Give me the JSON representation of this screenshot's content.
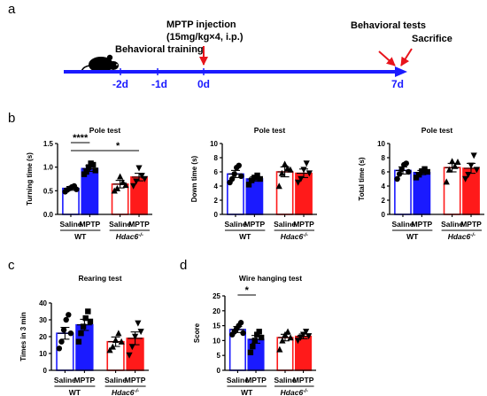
{
  "panel_labels": {
    "a": "a",
    "b": "b",
    "c": "c",
    "d": "d"
  },
  "timeline": {
    "injection_title": "MPTP injection",
    "injection_dose": "(15mg/kg×4, i.p.)",
    "behavioral_training": "Behavioral training",
    "behavioral_tests": "Behavioral tests",
    "sacrifice": "Sacrifice",
    "ticks": [
      "-2d",
      "-1d",
      "0d",
      "7d"
    ],
    "colors": {
      "timeline": "#1a1aff",
      "marker": "#e8141c"
    },
    "icon": "mouse-icon"
  },
  "groups": {
    "saline": "Saline",
    "mptp": "MPTP",
    "wt": "WT",
    "hdac6": "Hdac6",
    "hdac6_sup": "-/-"
  },
  "colors": {
    "wt": "#1a1aff",
    "hdac6": "#ff1a1a",
    "text": "#000000"
  },
  "chart_data": [
    {
      "id": "pole-turning",
      "type": "bar",
      "title": "Pole test",
      "ylabel": "Turning time (s)",
      "ylim": [
        0,
        1.5
      ],
      "yticks": [
        "0.0",
        "0.5",
        "1.0",
        "1.5"
      ],
      "tick_values": [
        0,
        0.5,
        1.0,
        1.5
      ],
      "categories": [
        "Saline",
        "MPTP",
        "Saline",
        "MPTP"
      ],
      "values": [
        0.55,
        0.97,
        0.64,
        0.79
      ],
      "errors": [
        0.04,
        0.06,
        0.08,
        0.08
      ],
      "points": [
        [
          0.48,
          0.52,
          0.55,
          0.58,
          0.6,
          0.53
        ],
        [
          0.85,
          0.9,
          1.0,
          1.08,
          1.05,
          0.93
        ],
        [
          0.5,
          0.55,
          0.8,
          0.68,
          0.62
        ],
        [
          0.6,
          0.7,
          0.98,
          0.82,
          0.75
        ]
      ],
      "significance": [
        {
          "from": 0,
          "to": 1,
          "label": "****"
        },
        {
          "from": 0,
          "to": 3,
          "label": "*"
        }
      ]
    },
    {
      "id": "pole-down",
      "type": "bar",
      "title": "Pole test",
      "ylabel": "Down time (s)",
      "ylim": [
        0,
        10
      ],
      "yticks": [
        "0",
        "2",
        "4",
        "6",
        "8",
        "10"
      ],
      "tick_values": [
        0,
        2,
        4,
        6,
        8,
        10
      ],
      "categories": [
        "Saline",
        "MPTP",
        "Saline",
        "MPTP"
      ],
      "values": [
        5.7,
        5.0,
        6.0,
        5.8
      ],
      "errors": [
        0.5,
        0.3,
        0.7,
        0.6
      ],
      "points": [
        [
          4.5,
          5.0,
          5.7,
          6.6,
          6.9,
          5.4
        ],
        [
          4.2,
          4.8,
          5.2,
          5.5,
          5.0
        ],
        [
          4.0,
          5.8,
          7.1,
          6.5,
          6.3
        ],
        [
          4.5,
          5.0,
          6.3,
          7.2,
          5.8
        ]
      ],
      "significance": []
    },
    {
      "id": "pole-total",
      "type": "bar",
      "title": "Pole test",
      "ylabel": "Total time (s)",
      "ylim": [
        0,
        10
      ],
      "yticks": [
        "0",
        "2",
        "4",
        "6",
        "8",
        "10"
      ],
      "tick_values": [
        0,
        2,
        4,
        6,
        8,
        10
      ],
      "categories": [
        "Saline",
        "MPTP",
        "Saline",
        "MPTP"
      ],
      "values": [
        6.2,
        5.9,
        6.6,
        6.5
      ],
      "errors": [
        0.5,
        0.3,
        0.6,
        0.7
      ],
      "points": [
        [
          5.0,
          5.7,
          6.4,
          7.0,
          7.2,
          6.0
        ],
        [
          5.2,
          5.6,
          6.1,
          6.4,
          6.0
        ],
        [
          4.6,
          6.3,
          7.5,
          6.8,
          7.4
        ],
        [
          5.0,
          5.6,
          6.9,
          8.3,
          6.3
        ]
      ],
      "significance": []
    },
    {
      "id": "rearing",
      "type": "bar",
      "title": "Rearing test",
      "ylabel": "Times in 3 min",
      "ylim": [
        0,
        40
      ],
      "yticks": [
        "0",
        "10",
        "20",
        "30",
        "40"
      ],
      "tick_values": [
        0,
        10,
        20,
        30,
        40
      ],
      "categories": [
        "Saline",
        "MPTP",
        "Saline",
        "MPTP"
      ],
      "values": [
        22,
        27,
        17,
        19
      ],
      "errors": [
        3.5,
        3.3,
        2.8,
        3.8
      ],
      "points": [
        [
          13,
          17,
          24,
          30,
          33,
          22
        ],
        [
          17,
          22,
          26,
          31,
          35,
          29
        ],
        [
          12,
          14,
          18,
          22,
          17
        ],
        [
          9,
          14,
          20,
          28,
          23
        ]
      ],
      "significance": []
    },
    {
      "id": "wire-hanging",
      "type": "bar",
      "title": "Wire hanging test",
      "ylabel": "Score",
      "ylim": [
        0,
        25
      ],
      "yticks": [
        "0",
        "5",
        "10",
        "15",
        "20",
        "25"
      ],
      "tick_values": [
        0,
        5,
        10,
        15,
        20,
        25
      ],
      "categories": [
        "Saline",
        "MPTP",
        "Saline",
        "MPTP"
      ],
      "values": [
        13.7,
        10.4,
        11.0,
        11.4
      ],
      "errors": [
        1.0,
        1.3,
        1.1,
        0.8
      ],
      "points": [
        [
          12,
          13,
          14,
          15,
          16,
          12.5
        ],
        [
          6,
          8,
          10,
          12,
          13,
          11
        ],
        [
          7,
          10,
          12,
          13,
          11
        ],
        [
          10,
          11,
          12,
          13,
          11.5
        ]
      ],
      "significance": [
        {
          "from": 0,
          "to": 1,
          "label": "*"
        }
      ]
    }
  ]
}
